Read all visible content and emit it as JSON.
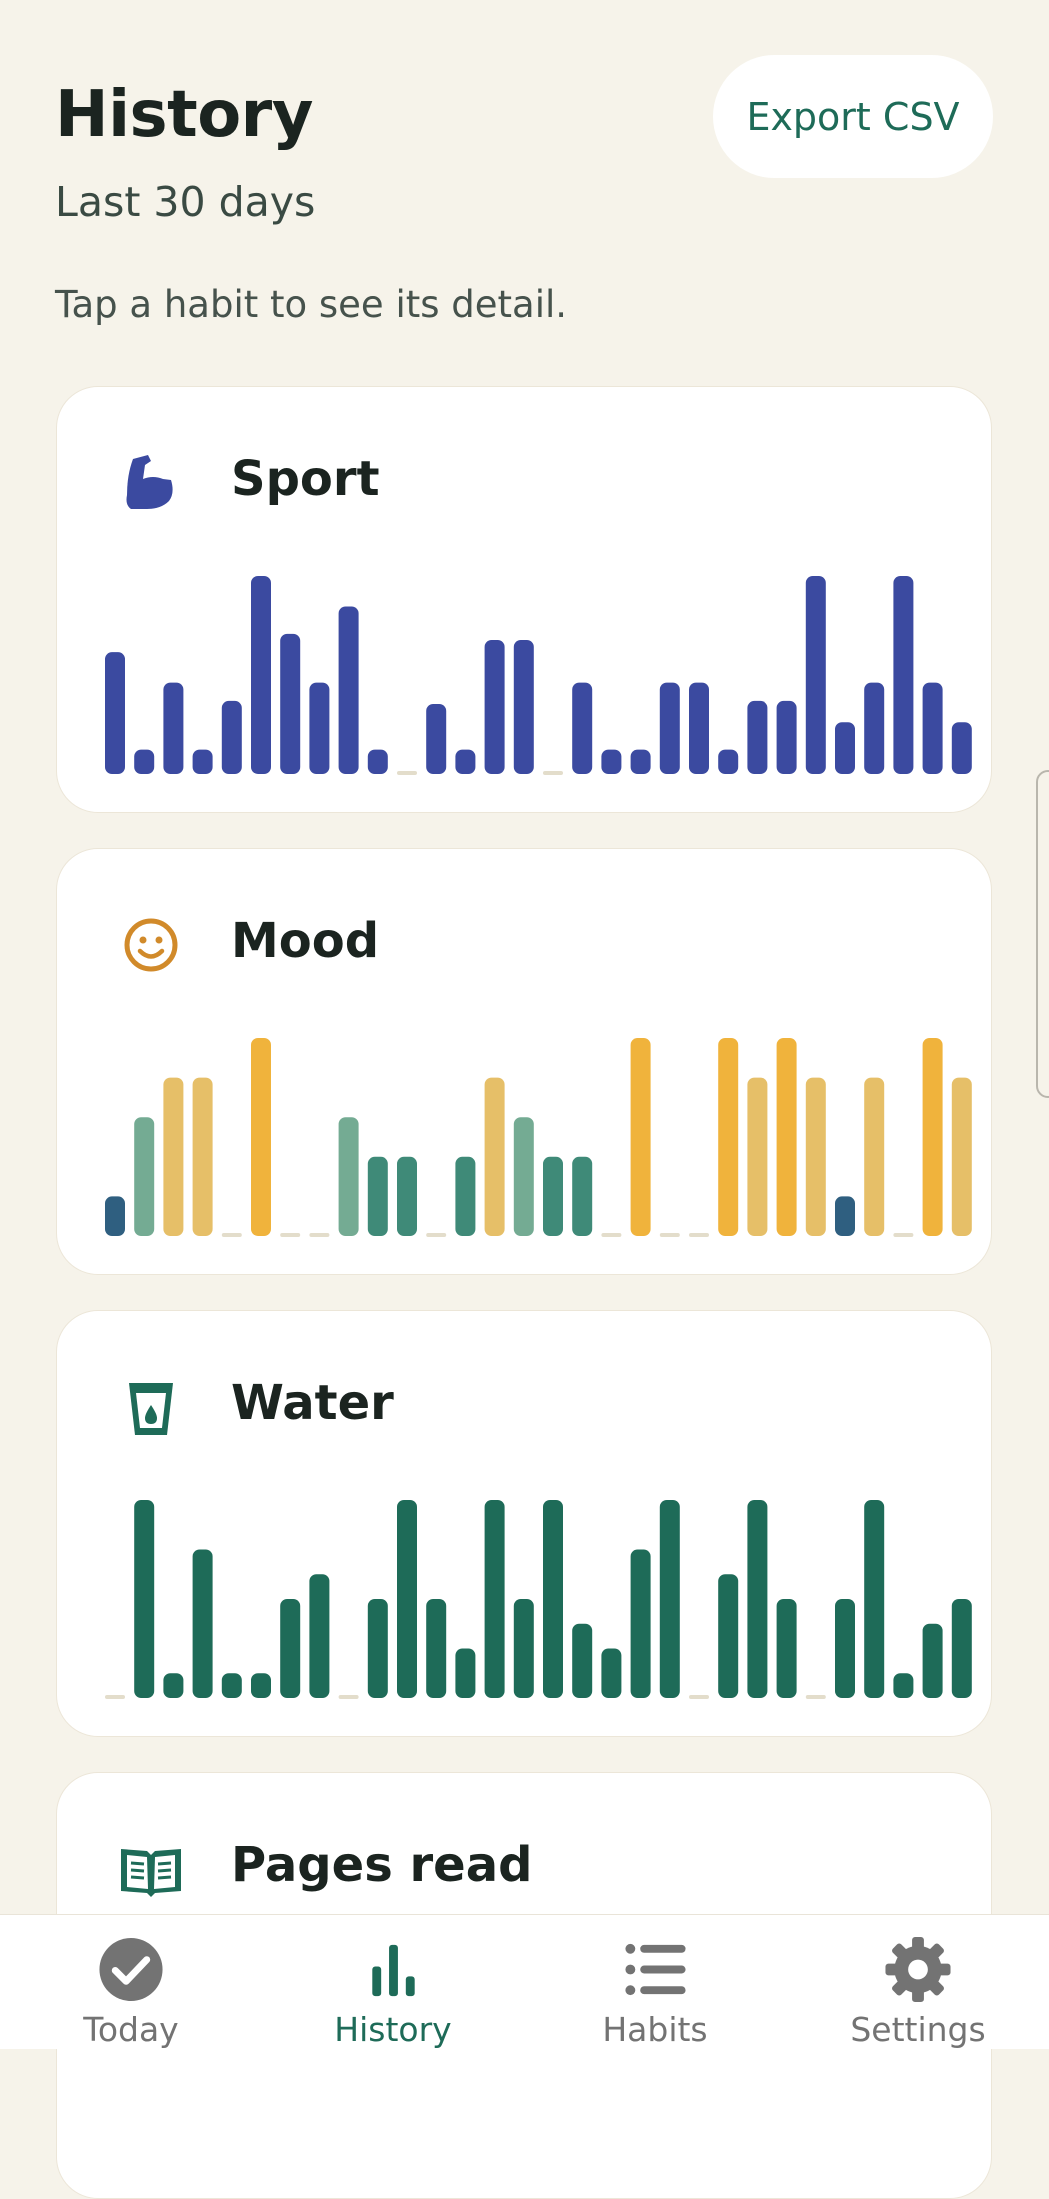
{
  "header": {
    "title": "History",
    "subtitle": "Last 30 days",
    "hint": "Tap a habit to see its detail.",
    "export_label": "Export CSV"
  },
  "habits": [
    {
      "name": "Sport",
      "icon": "flexed-biceps-icon",
      "values": [
        4,
        0.8,
        3,
        0.8,
        2.4,
        6.5,
        4.6,
        3,
        5.5,
        0.8,
        0,
        2.3,
        0.8,
        4.4,
        4.4,
        0,
        3,
        0.8,
        0.8,
        3,
        3,
        0.8,
        2.4,
        2.4,
        6.5,
        1.7,
        3,
        6.5,
        3,
        1.7
      ],
      "colors": {
        "bar": "#3b4aa0",
        "empty": "#e3ddcb"
      }
    },
    {
      "name": "Mood",
      "icon": "smiley-face-icon",
      "values": [
        1,
        3,
        4,
        4,
        0,
        5,
        0,
        0,
        3,
        2,
        2,
        0,
        2,
        4,
        3,
        2,
        2,
        0,
        5,
        0,
        0,
        5,
        4,
        5,
        4,
        1,
        4,
        0,
        5,
        4
      ],
      "colors": {
        "1": "#2f5f80",
        "2": "#3f8a78",
        "3": "#74ab93",
        "4": "#e6bf68",
        "5": "#f0b33c",
        "empty": "#e3ddcb"
      }
    },
    {
      "name": "Water",
      "icon": "glass-of-water-icon",
      "values": [
        0,
        8,
        1,
        6,
        1,
        1,
        4,
        5,
        0,
        4,
        8,
        4,
        2,
        8,
        4,
        8,
        3,
        2,
        6,
        8,
        0,
        5,
        8,
        4,
        0,
        4,
        8,
        1,
        3,
        4
      ],
      "colors": {
        "bar": "#1e6b58",
        "empty": "#e3ddcb"
      }
    },
    {
      "name": "Pages read",
      "icon": "open-book-icon",
      "values": [],
      "colors": {
        "bar": "#1e6b58",
        "empty": "#e3ddcb"
      }
    }
  ],
  "nav": [
    {
      "label": "Today",
      "icon": "check-circle-icon",
      "active": false
    },
    {
      "label": "History",
      "icon": "bar-chart-icon",
      "active": true
    },
    {
      "label": "Habits",
      "icon": "list-icon",
      "active": false
    },
    {
      "label": "Settings",
      "icon": "gear-icon",
      "active": false
    }
  ]
}
